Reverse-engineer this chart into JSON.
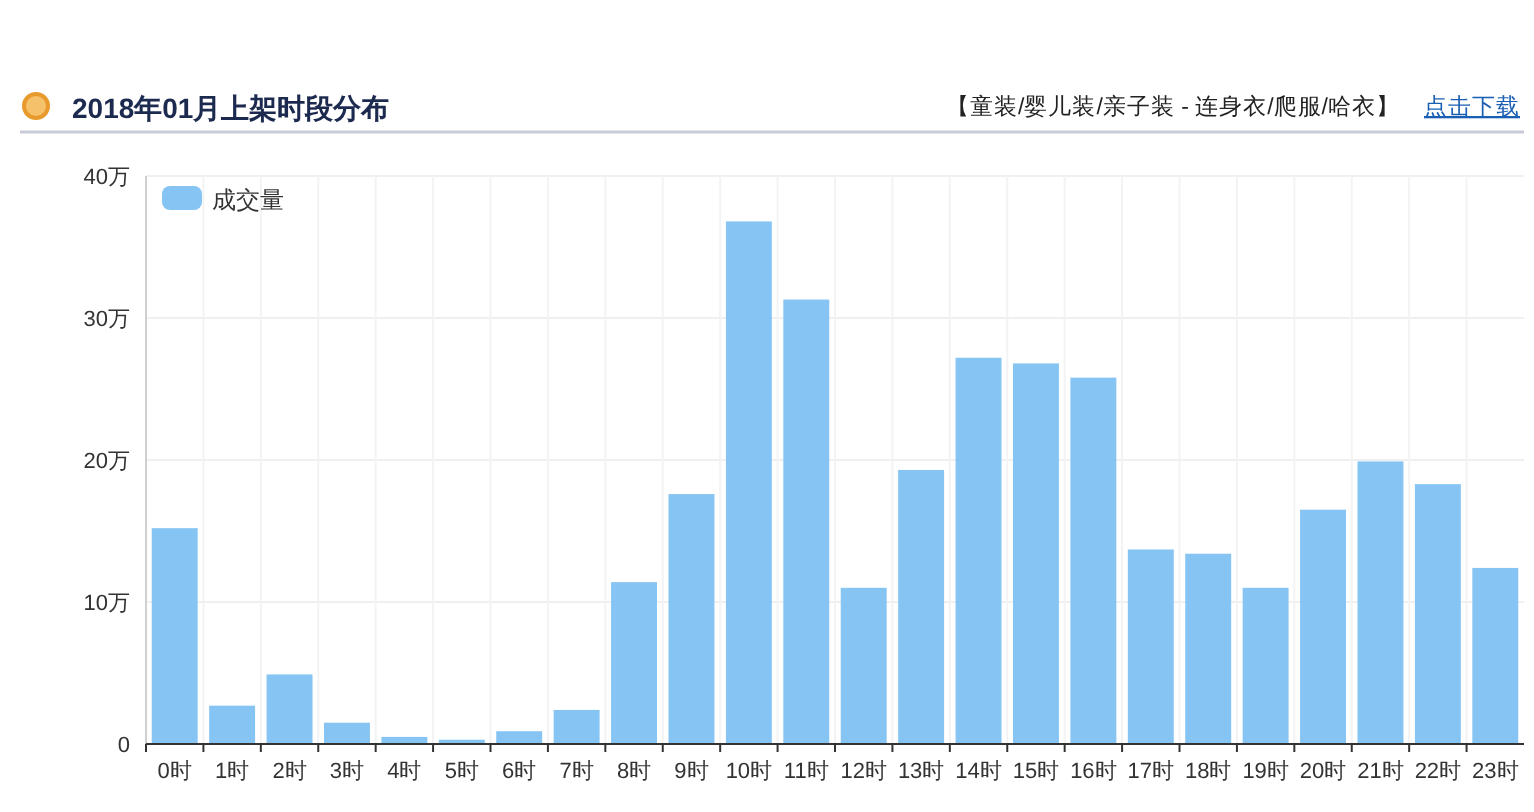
{
  "chart_data": {
    "type": "bar",
    "title": "2018年01月上架时段分布",
    "subtitle": "【童装/婴儿装/亲子装 - 连身衣/爬服/哈衣】",
    "annotations": [
      "点击下载"
    ],
    "categories": [
      "0时",
      "1时",
      "2时",
      "3时",
      "4时",
      "5时",
      "6时",
      "7时",
      "8时",
      "9时",
      "10时",
      "11时",
      "12时",
      "13时",
      "14时",
      "15时",
      "16时",
      "17时",
      "18时",
      "19时",
      "20时",
      "21时",
      "22时",
      "23时"
    ],
    "series": [
      {
        "name": "成交量",
        "color": "#85c4f3",
        "values": [
          15.2,
          2.7,
          4.9,
          1.5,
          0.5,
          0.3,
          0.9,
          2.4,
          11.4,
          17.6,
          36.8,
          31.3,
          11,
          19.3,
          27.2,
          26.8,
          25.8,
          13.7,
          13.4,
          11,
          16.5,
          19.9,
          18.3,
          12.4
        ]
      }
    ],
    "ylim": [
      0,
      40
    ],
    "yticks": [
      {
        "value": 0,
        "label": "0"
      },
      {
        "value": 10,
        "label": "10万"
      },
      {
        "value": 20,
        "label": "20万"
      },
      {
        "value": 30,
        "label": "30万"
      },
      {
        "value": 40,
        "label": "40万"
      }
    ],
    "grid": true,
    "legend": "top left"
  }
}
